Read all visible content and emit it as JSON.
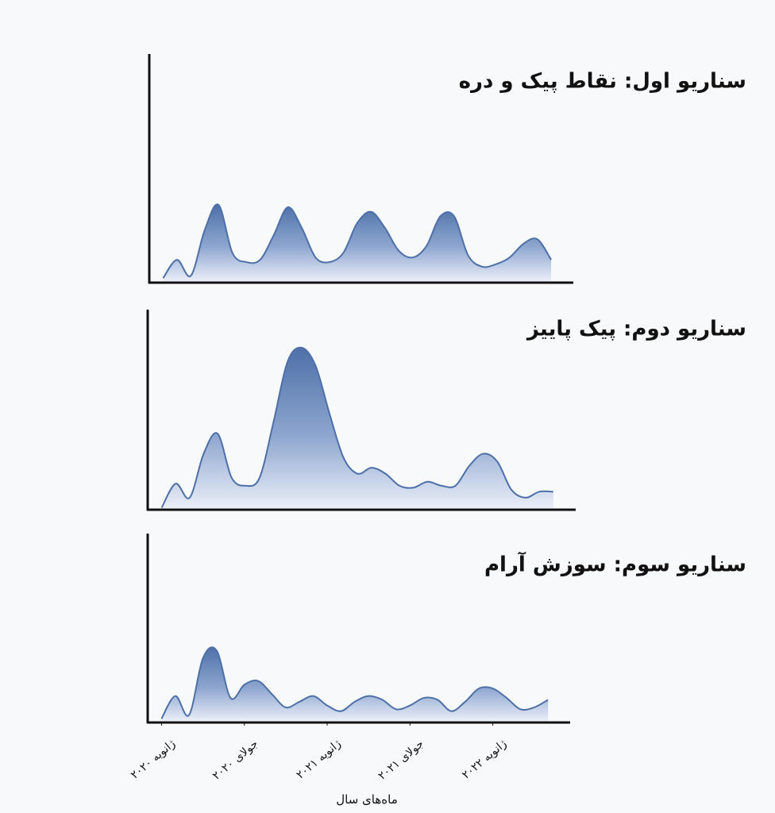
{
  "chart_data": [
    {
      "type": "area",
      "title": "سناریو اول: نقاط پیک و دره",
      "color": "#4d70a8",
      "x": [
        0,
        1,
        2,
        3,
        4,
        5,
        6,
        7,
        8,
        9,
        10,
        11,
        12,
        13,
        14,
        15,
        16,
        17,
        18,
        19,
        20,
        21,
        22,
        23,
        24,
        25,
        26,
        27,
        28
      ],
      "values": [
        2,
        10,
        3,
        23,
        34,
        13,
        9,
        10,
        21,
        33,
        24,
        11,
        9,
        13,
        26,
        31,
        24,
        14,
        11,
        16,
        29,
        29,
        12,
        7,
        8,
        11,
        17,
        19,
        10
      ],
      "xlim": [
        -1,
        29.6
      ],
      "ylim": [
        0,
        100
      ]
    },
    {
      "type": "area",
      "title": "سناریو دوم: پیک پاییز",
      "color": "#4d70a8",
      "x": [
        0,
        1,
        2,
        3,
        4,
        5,
        6,
        7,
        8,
        9,
        10,
        11,
        12,
        13,
        14,
        15,
        16,
        17,
        18,
        19,
        20,
        21,
        22,
        23,
        24,
        25,
        26,
        27,
        28
      ],
      "values": [
        1,
        13,
        6,
        28,
        38,
        16,
        12,
        16,
        44,
        74,
        81,
        72,
        48,
        26,
        18,
        21,
        18,
        12,
        11,
        14,
        12,
        12,
        22,
        28,
        24,
        10,
        6,
        9,
        9
      ],
      "xlim": [
        -1,
        29.6
      ],
      "ylim": [
        0,
        100
      ]
    },
    {
      "type": "area",
      "title": "سناریو سوم: سوزش آرام",
      "color": "#4d70a8",
      "x": [
        0,
        1,
        2,
        3,
        4,
        5,
        6,
        7,
        8,
        9,
        10,
        11,
        12,
        13,
        14,
        15,
        16,
        17,
        18,
        19,
        20,
        21,
        22,
        23,
        24,
        25,
        26,
        27,
        28
      ],
      "values": [
        2,
        14,
        4,
        34,
        38,
        13,
        20,
        22,
        15,
        8,
        11,
        14,
        9,
        6,
        11,
        14,
        12,
        7,
        9,
        13,
        12,
        6,
        11,
        18,
        18,
        13,
        7,
        8,
        12
      ],
      "xlim": [
        -1,
        29.6
      ],
      "ylim": [
        0,
        100
      ],
      "xticks": [
        {
          "value": 0,
          "label": "ژانویه ۲۰۲۰"
        },
        {
          "value": 6,
          "label": "جولای ۲۰۲۰"
        },
        {
          "value": 12,
          "label": "ژانویه ۲۰۲۱"
        },
        {
          "value": 18,
          "label": "جولای ۲۰۲۱"
        },
        {
          "value": 24,
          "label": "ژانویه ۲۰۲۲"
        }
      ],
      "xlabel": "ماه‌های سال"
    }
  ]
}
